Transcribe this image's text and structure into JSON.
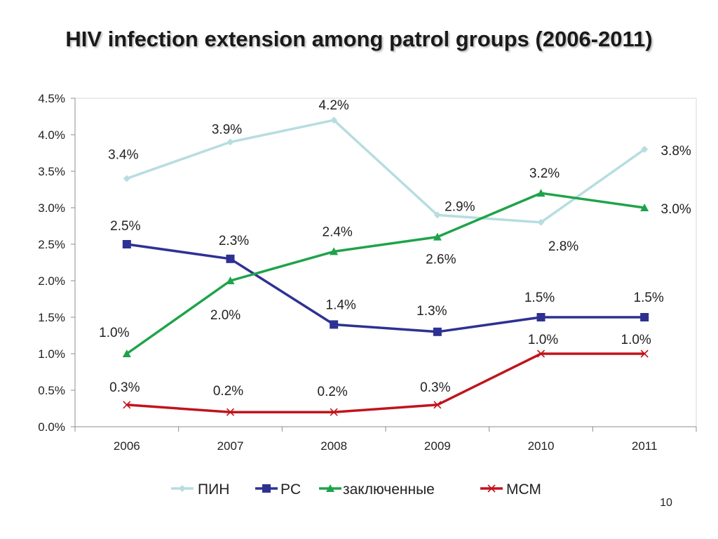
{
  "slide": {
    "title": "HIV infection extension among patrol groups (2006-2011)",
    "page_number": "10"
  },
  "chart_data": {
    "type": "line",
    "title": "HIV infection extension among patrol groups (2006-2011)",
    "x": [
      "2006",
      "2007",
      "2008",
      "2009",
      "2010",
      "2011"
    ],
    "ylim": [
      0,
      4.5
    ],
    "y_ticks": [
      "0.0%",
      "0.5%",
      "1.0%",
      "1.5%",
      "2.0%",
      "2.5%",
      "3.0%",
      "3.5%",
      "4.0%",
      "4.5%"
    ],
    "grid": false,
    "legend_position": "bottom",
    "series": [
      {
        "name": "ПИН",
        "color": "#b7dde0",
        "marker": "diamond",
        "values": [
          3.4,
          3.9,
          4.2,
          2.9,
          2.8,
          3.8
        ],
        "labels": [
          "3.4%",
          "3.9%",
          "4.2%",
          "2.9%",
          "2.8%",
          "3.8%"
        ]
      },
      {
        "name": "PC",
        "color": "#2e3192",
        "marker": "square",
        "values": [
          2.5,
          2.3,
          1.4,
          1.3,
          1.5,
          1.5
        ],
        "labels": [
          "2.5%",
          "2.3%",
          "1.4%",
          "1.3%",
          "1.5%",
          "1.5%"
        ]
      },
      {
        "name": "заключенные",
        "color": "#1fa34a",
        "marker": "triangle",
        "values": [
          1.0,
          2.0,
          2.4,
          2.6,
          3.2,
          3.0
        ],
        "labels": [
          "1.0%",
          "2.0%",
          "2.4%",
          "2.6%",
          "3.2%",
          "3.0%"
        ]
      },
      {
        "name": "МСМ",
        "color": "#c0141c",
        "marker": "x",
        "values": [
          0.3,
          0.2,
          0.2,
          0.3,
          1.0,
          1.0
        ],
        "labels": [
          "0.3%",
          "0.2%",
          "0.2%",
          "0.3%",
          "1.0%",
          "1.0%"
        ]
      }
    ]
  }
}
